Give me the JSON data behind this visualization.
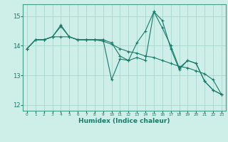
{
  "xlabel": "Humidex (Indice chaleur)",
  "background_color": "#ceeee8",
  "grid_color": "#aad4cc",
  "line_color": "#1a7a6a",
  "spine_color": "#4a9a8a",
  "xlim": [
    -0.5,
    23.5
  ],
  "ylim": [
    11.8,
    15.4
  ],
  "yticks": [
    12,
    13,
    14,
    15
  ],
  "xticks": [
    0,
    1,
    2,
    3,
    4,
    5,
    6,
    7,
    8,
    9,
    10,
    11,
    12,
    13,
    14,
    15,
    16,
    17,
    18,
    19,
    20,
    21,
    22,
    23
  ],
  "line1": [
    13.9,
    14.2,
    14.2,
    14.3,
    14.65,
    14.3,
    14.2,
    14.2,
    14.2,
    14.2,
    14.1,
    13.65,
    13.5,
    14.1,
    14.5,
    15.15,
    14.6,
    14.0,
    13.25,
    13.5,
    13.4,
    12.8,
    12.5,
    12.35
  ],
  "line2": [
    13.9,
    14.2,
    14.2,
    14.3,
    14.7,
    14.3,
    14.2,
    14.2,
    14.2,
    14.2,
    12.85,
    13.55,
    13.5,
    13.6,
    13.5,
    15.15,
    14.85,
    13.9,
    13.2,
    13.5,
    13.4,
    12.8,
    12.5,
    12.35
  ],
  "line3": [
    13.9,
    14.2,
    14.2,
    14.3,
    14.3,
    14.3,
    14.2,
    14.2,
    14.2,
    14.15,
    14.05,
    13.9,
    13.8,
    13.75,
    13.65,
    13.6,
    13.5,
    13.4,
    13.3,
    13.25,
    13.15,
    13.05,
    12.85,
    12.35
  ]
}
